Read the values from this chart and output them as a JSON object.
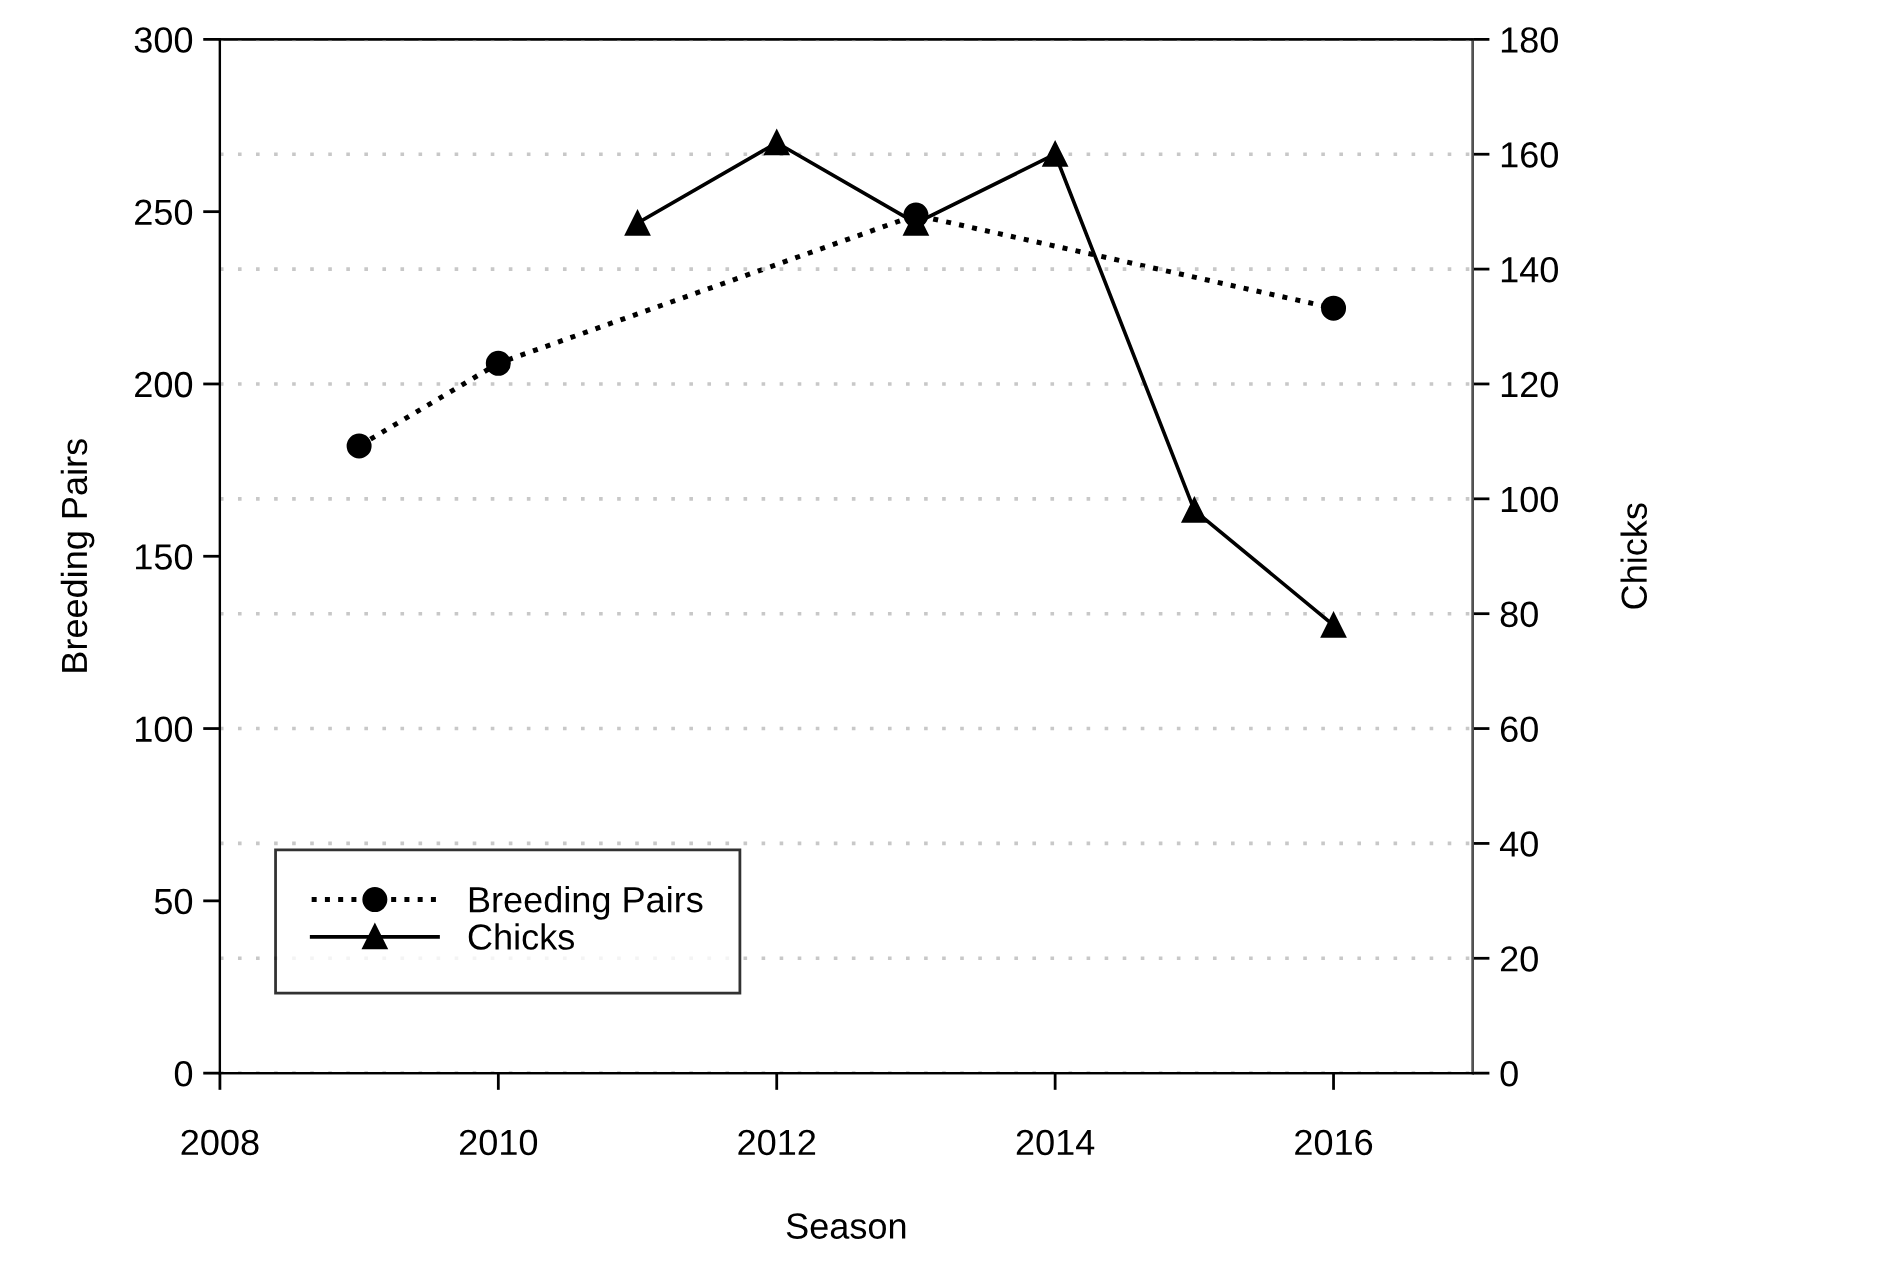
{
  "chart_data": {
    "type": "line",
    "xlabel": "Season",
    "ylabel": "Breeding Pairs",
    "y2label": "Chicks",
    "xlim": [
      2008,
      2017
    ],
    "xticks": [
      2008,
      2010,
      2012,
      2014,
      2016
    ],
    "ylim": [
      0,
      300
    ],
    "yticks": [
      0,
      50,
      100,
      150,
      200,
      250,
      300
    ],
    "y2lim": [
      0,
      180
    ],
    "y2ticks": [
      0,
      20,
      40,
      60,
      80,
      100,
      120,
      140,
      160,
      180
    ],
    "grid": "y2",
    "legend": "bottom left",
    "series": [
      {
        "name": "Breeding Pairs",
        "color": "#000000",
        "marker": "circle",
        "line_style": "dotted",
        "x": [
          2009,
          2010,
          2013,
          2016
        ],
        "values": [
          182,
          206,
          249,
          222
        ]
      },
      {
        "name": "Chicks",
        "color": "#000000",
        "marker": "triangle",
        "line_style": "solid",
        "axis": "y2",
        "x": [
          2011,
          2012,
          2013,
          2014,
          2015,
          2016
        ],
        "values": [
          148,
          162,
          148,
          160,
          98,
          78
        ]
      }
    ]
  }
}
